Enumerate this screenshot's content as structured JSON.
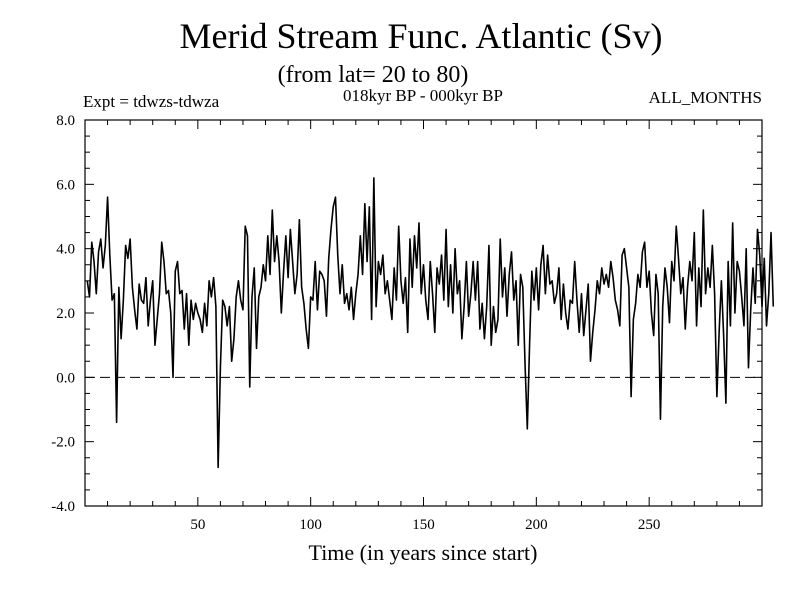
{
  "chart_data": {
    "type": "line",
    "title": "Merid Stream Func. Atlantic (Sv)",
    "subtitle": "(from lat= 20 to 80)",
    "experiment_label": "Expt = tdwzs-tdwza",
    "period_label": "018kyr BP - 000kyr BP",
    "season_label": "ALL_MONTHS",
    "xlabel": "Time (in years since start)",
    "ylabel": "",
    "xlim": [
      0,
      300
    ],
    "ylim": [
      -4,
      8
    ],
    "x_ticks": [
      50,
      100,
      150,
      200,
      250
    ],
    "y_ticks": [
      -4,
      -2,
      0,
      2,
      4,
      6,
      8
    ],
    "y_tick_labels": [
      "-4.0",
      "-2.0",
      "0.0",
      "2.0",
      "4.0",
      "6.0",
      "8.0"
    ],
    "reference_line": {
      "y": 0,
      "style": "dashed"
    },
    "series": [
      {
        "name": "Merid Stream Func. Atlantic",
        "x_start": 1,
        "x_step": 1,
        "values": [
          3.0,
          2.5,
          4.2,
          3.6,
          2.6,
          3.9,
          4.3,
          3.4,
          4.1,
          5.6,
          3.8,
          2.4,
          2.6,
          -1.4,
          2.8,
          1.2,
          2.4,
          4.1,
          3.7,
          4.3,
          2.8,
          2.1,
          1.5,
          2.9,
          2.4,
          2.3,
          3.1,
          1.6,
          2.4,
          3.0,
          1.0,
          1.8,
          2.6,
          4.2,
          3.6,
          2.6,
          2.7,
          2.0,
          0.0,
          3.3,
          3.6,
          2.6,
          2.7,
          1.5,
          2.6,
          1.0,
          2.4,
          1.8,
          2.3,
          2.0,
          1.8,
          1.4,
          2.3,
          1.6,
          3.0,
          2.5,
          3.1,
          2.2,
          -2.8,
          0.3,
          2.4,
          2.2,
          1.6,
          2.2,
          0.5,
          1.2,
          2.5,
          3.0,
          2.4,
          2.1,
          4.7,
          4.4,
          -0.3,
          2.5,
          3.4,
          0.9,
          2.5,
          2.8,
          3.5,
          3.0,
          4.4,
          3.2,
          5.2,
          3.6,
          4.4,
          3.6,
          2.0,
          3.3,
          4.4,
          3.1,
          4.6,
          3.6,
          2.6,
          3.2,
          4.9,
          2.8,
          2.3,
          1.5,
          0.9,
          2.5,
          2.4,
          3.6,
          2.1,
          3.3,
          3.2,
          3.0,
          1.9,
          3.7,
          4.6,
          5.3,
          5.6,
          3.8,
          2.6,
          3.5,
          2.3,
          2.6,
          2.1,
          2.8,
          1.8,
          2.6,
          3.2,
          4.4,
          3.2,
          5.4,
          3.6,
          5.3,
          1.8,
          6.2,
          2.2,
          3.6,
          3.2,
          3.8,
          2.6,
          3.0,
          2.4,
          1.8,
          3.4,
          2.4,
          4.7,
          3.0,
          2.3,
          3.1,
          1.4,
          4.3,
          2.8,
          4.4,
          3.4,
          4.8,
          2.6,
          3.5,
          2.4,
          1.8,
          3.6,
          2.6,
          1.4,
          3.4,
          2.9,
          3.8,
          2.4,
          4.6,
          2.2,
          3.5,
          2.0,
          4.0,
          2.6,
          3.0,
          1.2,
          2.2,
          3.6,
          1.9,
          2.6,
          3.6,
          2.4,
          3.6,
          1.5,
          2.3,
          1.2,
          2.2,
          4.1,
          1.0,
          2.2,
          1.4,
          1.8,
          4.3,
          2.5,
          3.4,
          1.9,
          3.2,
          3.9,
          2.4,
          3.0,
          1.0,
          3.2,
          2.8,
          0.4,
          -1.6,
          1.0,
          3.3,
          2.4,
          3.4,
          2.1,
          3.5,
          4.1,
          2.6,
          3.8,
          2.9,
          3.0,
          2.3,
          2.6,
          3.4,
          1.8,
          2.9,
          2.0,
          1.5,
          2.4,
          2.3,
          3.6,
          2.4,
          1.4,
          2.6,
          1.3,
          2.1,
          2.9,
          0.5,
          1.4,
          2.1,
          3.0,
          2.6,
          3.4,
          2.9,
          3.2,
          2.8,
          3.6,
          3.1,
          2.4,
          2.1,
          1.6,
          3.8,
          4.0,
          3.4,
          2.8,
          -0.6,
          1.8,
          2.3,
          3.2,
          2.8,
          3.9,
          4.2,
          2.8,
          3.3,
          2.0,
          1.3,
          3.2,
          2.6,
          -1.3,
          2.2,
          3.4,
          2.8,
          1.7,
          3.6,
          3.0,
          4.7,
          3.7,
          2.6,
          3.1,
          1.5,
          2.8,
          3.6,
          3.0,
          4.5,
          1.6,
          3.4,
          2.2,
          5.2,
          2.6,
          3.4,
          2.8,
          4.1,
          2.6,
          -0.6,
          1.4,
          3.0,
          1.3,
          -0.8,
          3.6,
          1.6,
          4.8,
          2.0,
          3.6,
          3.3,
          2.5,
          1.6,
          4.0,
          0.3,
          2.1,
          3.4,
          2.3,
          4.6,
          3.8,
          2.2,
          3.7,
          1.6,
          2.6,
          4.5,
          2.2
        ]
      }
    ]
  }
}
